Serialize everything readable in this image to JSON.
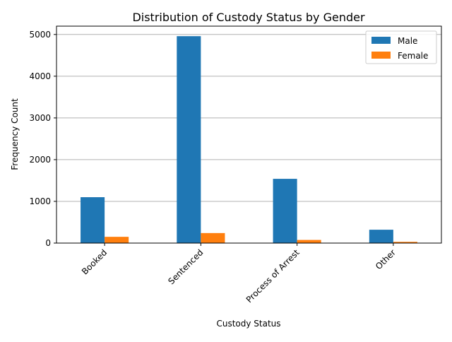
{
  "chart_data": {
    "type": "bar",
    "title": "Distribution of Custody Status by Gender",
    "xlabel": "Custody Status",
    "ylabel": "Frequency Count",
    "categories": [
      "Booked",
      "Sentenced",
      "Process of Arrest",
      "Other"
    ],
    "series": [
      {
        "name": "Male",
        "color": "#1f77b4",
        "values": [
          1100,
          4960,
          1540,
          320
        ]
      },
      {
        "name": "Female",
        "color": "#ff7f0e",
        "values": [
          150,
          240,
          75,
          30
        ]
      }
    ],
    "ylim": [
      0,
      5200
    ],
    "yticks": [
      0,
      1000,
      2000,
      3000,
      4000,
      5000
    ],
    "ytick_labels": [
      "0",
      "1000",
      "2000",
      "3000",
      "4000",
      "5000"
    ],
    "grid": "y",
    "legend_position": "top-right",
    "xtick_rotation": 45
  }
}
